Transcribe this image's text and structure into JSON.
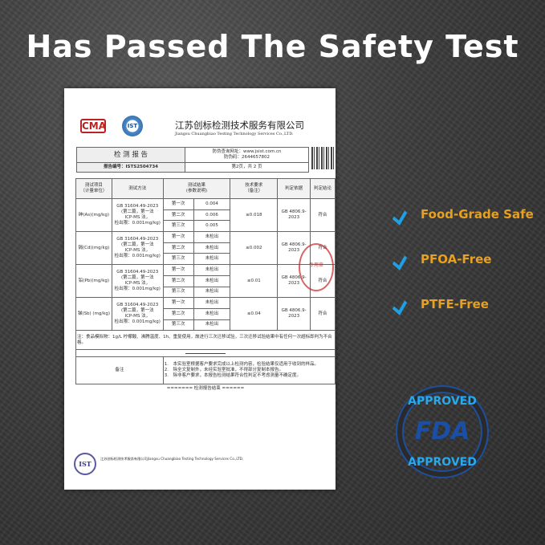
{
  "title": "Has Passed The Safety Test",
  "doc": {
    "cma_logo": "CMA",
    "ist_logo": "IST",
    "company_cn": "江苏创标检测技术服务有限公司",
    "company_en": "Jiangsu Chuangbiao Testing Technology Services Co.,LTD.",
    "report_title": "检 测 报 告",
    "verify_url": "防伪查询网址：www.jsist.com.cn",
    "verify_code": "防伪码：2644657802",
    "report_no": "报告编号：ISTS2504734",
    "page": "第2页，共 2 页",
    "headers": [
      "测试项目\n（计量单位）",
      "测试方法",
      "测试结果\n(参数说明)",
      "技术要求\n（备注）",
      "判定依据",
      "判定结论"
    ],
    "method": [
      "GB 31604.49-2023",
      "(第二篇，第一法",
      "ICP-MS 法，",
      "检出限：0.001mg/kg)"
    ],
    "rounds": [
      "第一次",
      "第二次",
      "第三次"
    ],
    "rows": [
      {
        "item": "砷(As)(mg/kg)",
        "results": [
          "0.004",
          "0.006",
          "0.005"
        ],
        "req": "≤0.018",
        "basis": "GB 4806.9-2023",
        "conclusion": "符合"
      },
      {
        "item": "镉(Cd)(mg/kg)",
        "results": [
          "未检出",
          "未检出",
          "未检出"
        ],
        "req": "≤0.002",
        "basis": "GB 4806.9-2023",
        "conclusion": "符合"
      },
      {
        "item": "铅(Pb)(mg/kg)",
        "results": [
          "未检出",
          "未检出",
          "未检出"
        ],
        "req": "≤0.01",
        "basis": "GB 4806.9-2023",
        "conclusion": "符合"
      },
      {
        "item": "锑(Sb) (mg/kg)",
        "results": [
          "未检出",
          "未检出",
          "未检出"
        ],
        "req": "≤0.04",
        "basis": "GB 4806.9-2023",
        "conclusion": "符合"
      }
    ],
    "note": "注：食品模拟物：1g/L 柠檬酸、沸腾温度、1h、重复使用，故进行三次迁移试验，三次迁移试验结果中有任何一次超标即判为不合格。",
    "remarks_label": "备注",
    "remarks": [
      "1.　本实验室根据客户要求完成以上检测内容，检验结果仅适用于收到的样品。",
      "2.　除全文复制外，未经实验室批准，不得部分复制本报告。",
      "3.　除非客户要求，本报告检测结果符合性判定不考虑测量不确定度。"
    ],
    "end": "======= 检测报告结束 ======",
    "stamp": "专用章",
    "footer_ist": "IST",
    "footer": "江苏创标检测技术服务有限公司Jiangsu Chuangbiao Testing Technology Services Co.,LTD."
  },
  "features": [
    {
      "label": "Food-Grade Safe",
      "icon": "check-icon"
    },
    {
      "label": "PFOA-Free",
      "icon": "check-icon"
    },
    {
      "label": "PTFE-Free",
      "icon": "check-icon"
    }
  ],
  "badge": {
    "top": "APPROVED",
    "center": "FDA",
    "bottom": "APPROVED"
  },
  "colors": {
    "feature_text": "#e8a020",
    "check": "#1ea0e6",
    "fda_blue": "#1a4fa8",
    "approved": "#29a8ea"
  }
}
